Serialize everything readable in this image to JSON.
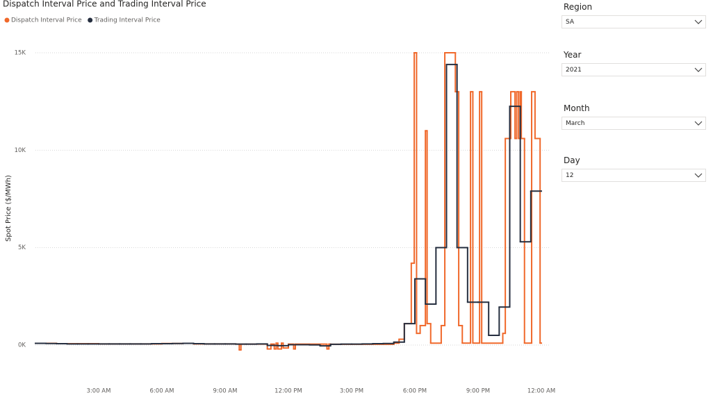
{
  "chart_data": {
    "type": "line",
    "line_shape": "step",
    "title": "Dispatch Interval Price and Trading Interval Price",
    "y_label": "Spot Price ($/MWh)",
    "xlim": [
      0,
      24
    ],
    "xticks": [
      {
        "value": 3,
        "label": "3:00 AM"
      },
      {
        "value": 6,
        "label": "6:00 AM"
      },
      {
        "value": 9,
        "label": "9:00 AM"
      },
      {
        "value": 12,
        "label": "12:00 PM"
      },
      {
        "value": 15,
        "label": "3:00 PM"
      },
      {
        "value": 18,
        "label": "6:00 PM"
      },
      {
        "value": 21,
        "label": "9:00 PM"
      },
      {
        "value": 24,
        "label": "12:00 AM"
      }
    ],
    "ylim": [
      0,
      15000
    ],
    "yticks": [
      {
        "value": 0,
        "label": "0K"
      },
      {
        "value": 5000,
        "label": "5K"
      },
      {
        "value": 10000,
        "label": "10K"
      },
      {
        "value": 15000,
        "label": "15K"
      }
    ],
    "grid": true,
    "series": [
      {
        "name": "Dispatch Interval Price",
        "color": "#f0682a",
        "x": [
          0,
          1,
          3,
          6,
          7,
          7.5,
          9.5,
          9.67,
          9.75,
          11,
          11.17,
          11.33,
          11.42,
          11.5,
          11.67,
          11.75,
          12,
          12.25,
          12.33,
          13.83,
          13.92,
          14,
          17,
          17.25,
          17.5,
          17.83,
          17.97,
          18.08,
          18.25,
          18.5,
          18.58,
          18.75,
          19.25,
          19.42,
          19.92,
          20.08,
          20.25,
          20.64,
          20.75,
          21.07,
          21.17,
          22.17,
          22.29,
          22.55,
          22.75,
          22.83,
          22.92,
          23,
          23.05,
          23.2,
          23.54,
          23.7,
          23.94
        ],
        "values": [
          90,
          70,
          60,
          80,
          90,
          60,
          50,
          -250,
          50,
          -200,
          50,
          -200,
          100,
          -200,
          100,
          -150,
          50,
          -200,
          50,
          -200,
          50,
          40,
          100,
          300,
          1100,
          4200,
          15000,
          600,
          1000,
          11000,
          1100,
          100,
          1000,
          15000,
          13000,
          1000,
          100,
          13000,
          100,
          13000,
          100,
          600,
          10600,
          13000,
          10600,
          13000,
          10600,
          13000,
          10600,
          100,
          13000,
          10600,
          100
        ]
      },
      {
        "name": "Trading Interval Price",
        "color": "#252e3f",
        "x": [
          0,
          0.5,
          1,
          1.5,
          2,
          2.5,
          3,
          3.5,
          4,
          4.5,
          5,
          5.5,
          6,
          6.5,
          7,
          7.5,
          8,
          8.5,
          9,
          9.5,
          10,
          10.5,
          11,
          11.5,
          12,
          12.5,
          13,
          13.5,
          14,
          14.5,
          15,
          15.5,
          16,
          16.5,
          17,
          17.5,
          18,
          18.5,
          19,
          19.5,
          20,
          20.5,
          21,
          21.5,
          22,
          22.5,
          23,
          23.5
        ],
        "values": [
          90,
          80,
          70,
          60,
          60,
          60,
          60,
          60,
          60,
          60,
          60,
          70,
          70,
          80,
          90,
          70,
          60,
          60,
          60,
          50,
          50,
          60,
          -20,
          -30,
          20,
          20,
          10,
          -40,
          40,
          50,
          50,
          60,
          70,
          80,
          150,
          1100,
          3400,
          2100,
          5000,
          14400,
          5000,
          2200,
          2200,
          500,
          1950,
          12250,
          5300,
          7900
        ]
      }
    ]
  },
  "slicers": [
    {
      "label": "Region",
      "value": "SA"
    },
    {
      "label": "Year",
      "value": "2021"
    },
    {
      "label": "Month",
      "value": "March"
    },
    {
      "label": "Day",
      "value": "12"
    }
  ]
}
